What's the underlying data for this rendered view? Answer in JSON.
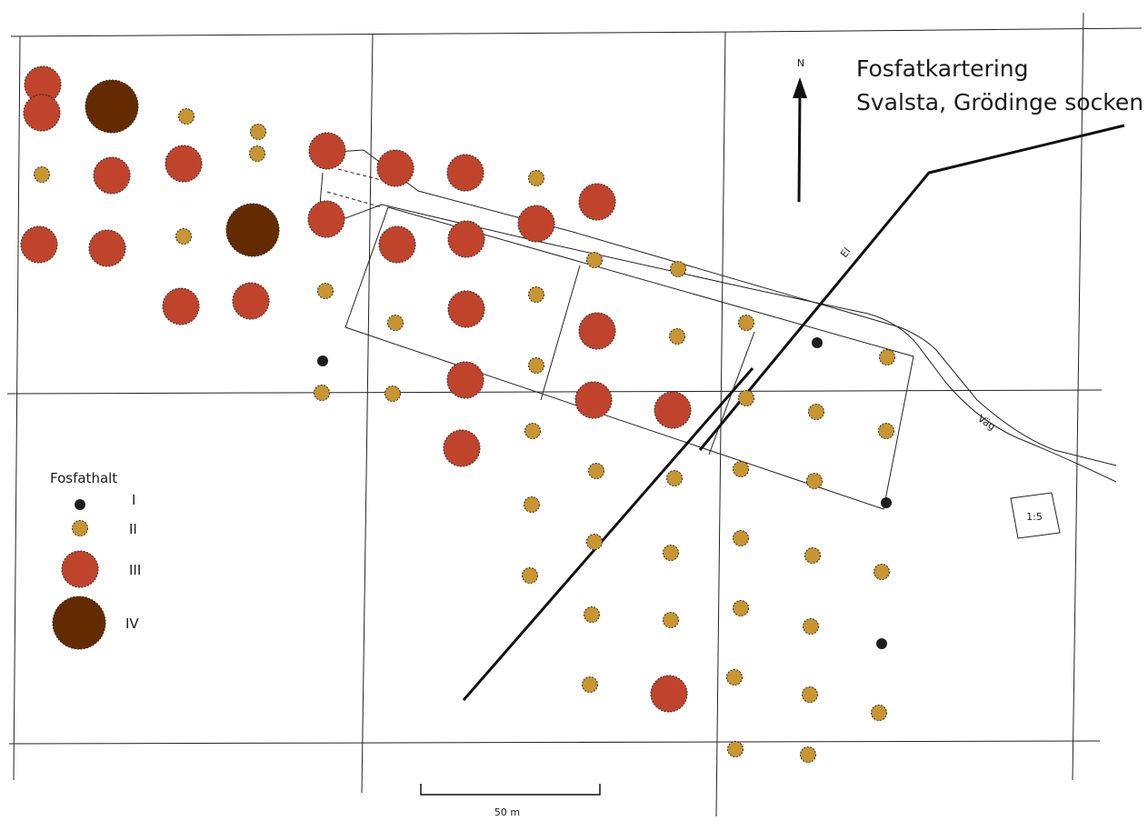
{
  "title": "Fosfatkartering",
  "subtitle": "Svalsta, Grödinge socken",
  "north_label": "N",
  "scale_bar_label": "50 m",
  "ratio_label": "1:5",
  "power_line_label": "El",
  "road_label": "Väg",
  "legend": {
    "title": "Fosfathalt",
    "classes": [
      {
        "id": "I",
        "label": "I",
        "color": "#1e1e1e"
      },
      {
        "id": "II",
        "label": "II",
        "color": "#c99530"
      },
      {
        "id": "III",
        "label": "III",
        "color": "#c0442c"
      },
      {
        "id": "IV",
        "label": "IV",
        "color": "#652b00"
      }
    ]
  }
}
